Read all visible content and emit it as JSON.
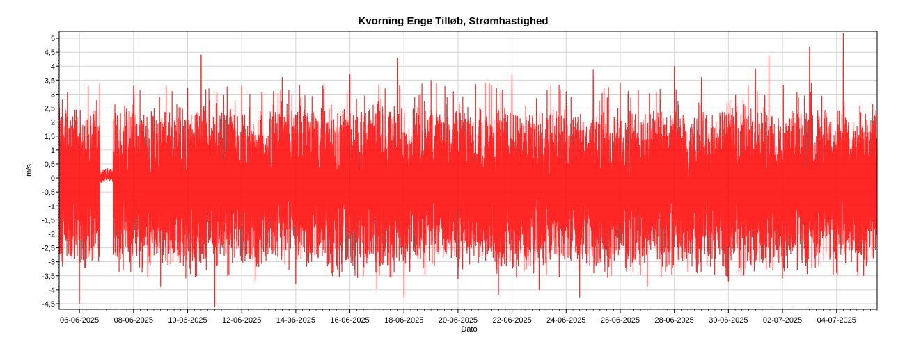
{
  "chart_data": {
    "type": "line",
    "title": "Kvorning Enge Tilløb, Strømhastighed",
    "xlabel": "Dato",
    "ylabel": "m/s",
    "ylim": [
      -4.7,
      5.25
    ],
    "xlim": [
      "2025-06-05T06:00",
      "2025-07-05T12:00"
    ],
    "yticks": [
      "-4,5",
      "-4",
      "-3,5",
      "-3",
      "-2,5",
      "-2",
      "-1,5",
      "-1",
      "-0,5",
      "0",
      "0,5",
      "1",
      "1,5",
      "2",
      "2,5",
      "3",
      "3,5",
      "4",
      "4,5",
      "5"
    ],
    "xticks": [
      "06-06-2025",
      "08-06-2025",
      "10-06-2025",
      "12-06-2025",
      "14-06-2025",
      "16-06-2025",
      "18-06-2025",
      "20-06-2025",
      "22-06-2025",
      "24-06-2025",
      "26-06-2025",
      "28-06-2025",
      "30-06-2025",
      "02-07-2025",
      "04-07-2025"
    ],
    "grid": true,
    "series": [
      {
        "color": "#ff0000",
        "sampling": "high-frequency oscillation between roughly -3 and +2.5 m/s",
        "x": [
          "2025-06-05T06:00",
          "2025-06-06T00:00",
          "2025-06-06T18:00",
          "2025-06-07T12:00",
          "2025-06-08T00:00",
          "2025-06-09T00:00",
          "2025-06-10T00:00",
          "2025-06-10T12:00",
          "2025-06-11T00:00",
          "2025-06-11T02:00",
          "2025-06-12T00:00",
          "2025-06-12T12:00",
          "2025-06-13T12:00",
          "2025-06-14T00:00",
          "2025-06-15T00:00",
          "2025-06-16T00:00",
          "2025-06-17T00:00",
          "2025-06-17T18:00",
          "2025-06-18T00:00",
          "2025-06-19T00:00",
          "2025-06-20T00:00",
          "2025-06-21T00:00",
          "2025-06-21T12:00",
          "2025-06-22T00:00",
          "2025-06-23T00:00",
          "2025-06-24T00:00",
          "2025-06-24T12:00",
          "2025-06-25T00:00",
          "2025-06-26T00:00",
          "2025-06-27T00:00",
          "2025-06-28T00:00",
          "2025-06-29T00:00",
          "2025-06-30T00:00",
          "2025-07-01T00:00",
          "2025-07-01T12:00",
          "2025-07-02T00:00",
          "2025-07-03T00:00",
          "2025-07-04T00:00",
          "2025-07-04T06:00",
          "2025-07-05T00:00",
          "2025-07-05T06:00"
        ],
        "y": [
          2.6,
          -4.5,
          3.4,
          0.1,
          3.3,
          -3.9,
          3.2,
          4.4,
          -4.6,
          3.0,
          3.3,
          -3.7,
          3.6,
          -3.8,
          3.3,
          3.7,
          -4.0,
          4.3,
          -4.3,
          3.5,
          -3.6,
          3.4,
          -4.2,
          3.7,
          -4.0,
          3.1,
          -4.3,
          3.9,
          3.4,
          -3.9,
          4.0,
          3.6,
          -3.7,
          3.9,
          4.4,
          -3.6,
          4.7,
          -3.4,
          5.2,
          -3.5,
          1.3
        ]
      }
    ]
  }
}
